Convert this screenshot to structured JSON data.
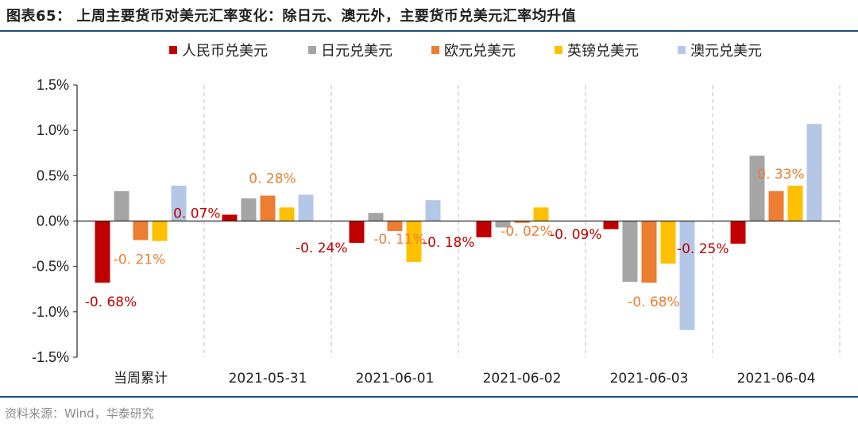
{
  "figure": {
    "title": "图表65：  上周主要货币对美元汇率变化：除日元、澳元外，主要货币兑美元汇率均升值",
    "source": "资料来源：Wind，华泰研究"
  },
  "chart_data": {
    "type": "bar",
    "categories": [
      "当周累计",
      "2021-05-31",
      "2021-06-01",
      "2021-06-02",
      "2021-06-03",
      "2021-06-04"
    ],
    "series": [
      {
        "name": "人民币兑美元",
        "color": "#c00000",
        "values": [
          -0.68,
          0.07,
          -0.24,
          -0.18,
          -0.09,
          -0.25
        ]
      },
      {
        "name": "日元兑美元",
        "color": "#a5a5a5",
        "values": [
          0.33,
          0.25,
          0.09,
          -0.07,
          -0.67,
          0.72
        ]
      },
      {
        "name": "欧元兑美元",
        "color": "#ed7d31",
        "values": [
          -0.21,
          0.28,
          -0.11,
          -0.02,
          -0.68,
          0.33
        ]
      },
      {
        "name": "英镑兑美元",
        "color": "#ffc000",
        "values": [
          -0.22,
          0.15,
          -0.45,
          0.15,
          -0.47,
          0.39
        ]
      },
      {
        "name": "澳元兑美元",
        "color": "#b4c7e7",
        "values": [
          0.39,
          0.29,
          0.23,
          0.0,
          -1.2,
          1.07
        ]
      }
    ],
    "data_labels": [
      {
        "series": 0,
        "category": 0,
        "text": "-0. 68%"
      },
      {
        "series": 2,
        "category": 0,
        "text": "-0. 21%"
      },
      {
        "series": 0,
        "category": 1,
        "text": "0. 07%"
      },
      {
        "series": 2,
        "category": 1,
        "text": "0. 28%"
      },
      {
        "series": 0,
        "category": 2,
        "text": "-0. 24%"
      },
      {
        "series": 2,
        "category": 2,
        "text": "-0. 11%"
      },
      {
        "series": 0,
        "category": 3,
        "text": "-0. 18%"
      },
      {
        "series": 2,
        "category": 3,
        "text": "-0. 02%"
      },
      {
        "series": 0,
        "category": 4,
        "text": "-0. 09%"
      },
      {
        "series": 2,
        "category": 4,
        "text": "-0. 68%"
      },
      {
        "series": 0,
        "category": 5,
        "text": "-0. 25%"
      },
      {
        "series": 2,
        "category": 5,
        "text": "0. 33%"
      }
    ],
    "yticks": [
      1.5,
      1.0,
      0.5,
      0.0,
      -0.5,
      -1.0,
      -1.5
    ],
    "ytick_labels": [
      "1.5%",
      "1.0%",
      "0.5%",
      "0.0%",
      "-0.5%",
      "-1.0%",
      "-1.5%"
    ],
    "ylim": [
      -1.5,
      1.5
    ],
    "xlabel": "",
    "ylabel": "",
    "legend_position": "top",
    "separators": "dashed"
  }
}
